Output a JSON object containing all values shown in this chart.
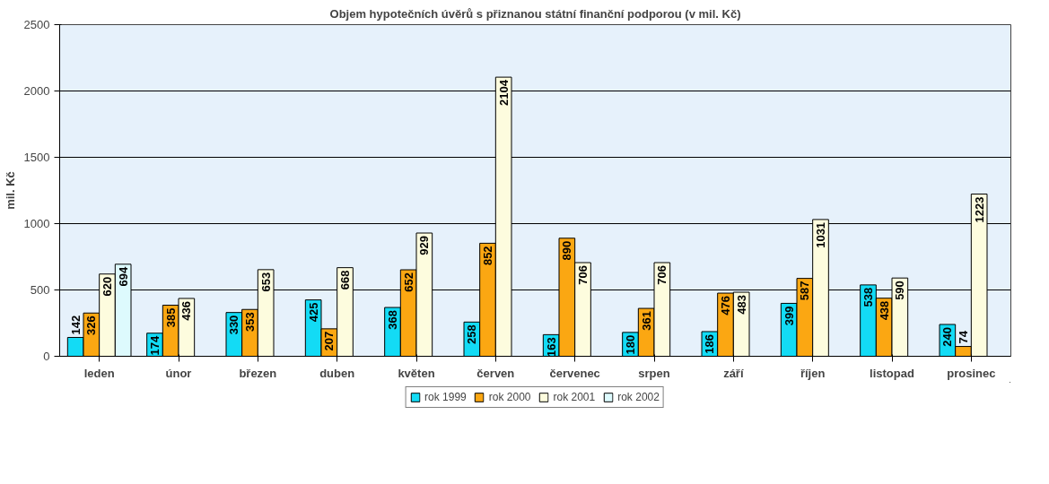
{
  "chart_data": {
    "type": "bar",
    "title": "Objem hypotečních úvěrů s přiznanou státní finanční podporou (v mil. Kč)",
    "ylabel": "mil. Kč",
    "categories": [
      "leden",
      "únor",
      "březen",
      "duben",
      "květen",
      "červen",
      "červenec",
      "srpen",
      "září",
      "říjen",
      "listopad",
      "prosinec"
    ],
    "series": [
      {
        "name": "rok 1999",
        "color": "#13dbf5",
        "values": [
          142,
          174,
          330,
          425,
          368,
          258,
          163,
          180,
          186,
          399,
          538,
          240
        ]
      },
      {
        "name": "rok 2000",
        "color": "#fba712",
        "values": [
          326,
          385,
          353,
          207,
          652,
          852,
          890,
          361,
          476,
          587,
          438,
          74
        ]
      },
      {
        "name": "rok 2001",
        "color": "#fdfcde",
        "values": [
          620,
          436,
          653,
          668,
          929,
          2104,
          706,
          706,
          483,
          1031,
          590,
          1223
        ]
      },
      {
        "name": "rok 2002",
        "color": "#ddfafd",
        "values": [
          694,
          null,
          null,
          null,
          null,
          null,
          null,
          null,
          null,
          null,
          null,
          null
        ]
      }
    ],
    "ylim": [
      0,
      2500
    ],
    "yticks": [
      0,
      500,
      1000,
      1500,
      2000,
      2500
    ],
    "grid": "y",
    "legend": "bottom",
    "data_labels": true
  }
}
